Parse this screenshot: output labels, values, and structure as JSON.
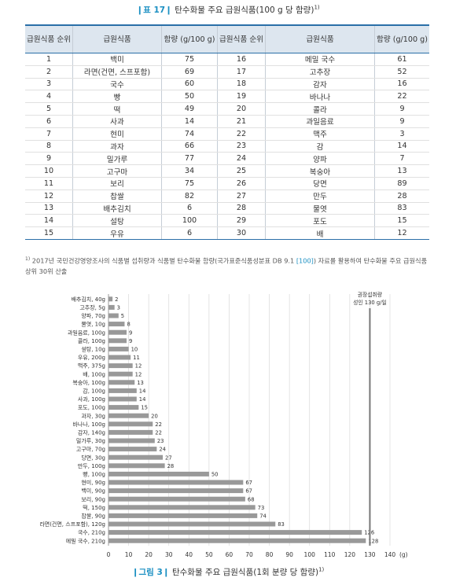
{
  "table": {
    "label": "표 17",
    "title": "탄수화물 주요 급원식품(100 g 당 함량)",
    "footnote_mark": "1)",
    "headers": [
      "급원식품 순위",
      "급원식품",
      "함량 (g/100 g)",
      "급원식품 순위",
      "급원식품",
      "함량 (g/100 g)"
    ],
    "rows": [
      [
        "1",
        "백미",
        "75",
        "16",
        "메밀 국수",
        "61"
      ],
      [
        "2",
        "라면(건면, 스프포함)",
        "69",
        "17",
        "고추장",
        "52"
      ],
      [
        "3",
        "국수",
        "60",
        "18",
        "감자",
        "16"
      ],
      [
        "4",
        "빵",
        "50",
        "19",
        "바나나",
        "22"
      ],
      [
        "5",
        "떡",
        "49",
        "20",
        "콜라",
        "9"
      ],
      [
        "6",
        "사과",
        "14",
        "21",
        "과일음료",
        "9"
      ],
      [
        "7",
        "현미",
        "74",
        "22",
        "맥주",
        "3"
      ],
      [
        "8",
        "과자",
        "66",
        "23",
        "감",
        "14"
      ],
      [
        "9",
        "밀가루",
        "77",
        "24",
        "양파",
        "7"
      ],
      [
        "10",
        "고구마",
        "34",
        "25",
        "복숭아",
        "13"
      ],
      [
        "11",
        "보리",
        "75",
        "26",
        "당면",
        "89"
      ],
      [
        "12",
        "찹쌀",
        "82",
        "27",
        "만두",
        "28"
      ],
      [
        "13",
        "배추김치",
        "6",
        "28",
        "물엿",
        "83"
      ],
      [
        "14",
        "설탕",
        "100",
        "29",
        "포도",
        "15"
      ],
      [
        "15",
        "우유",
        "6",
        "30",
        "배",
        "12"
      ]
    ]
  },
  "note": {
    "mark": "1)",
    "text1": "2017년 국민건강영양조사의 식품별 섭취량과 식품별 탄수화물 함량(국가표준식품성분표 DB 9.1 ",
    "ref": "[100]",
    "text2": ") 자료를 활용하여 탄수화물 주요 급원식품 상위 30위 산출"
  },
  "chart_data": {
    "type": "bar",
    "orientation": "horizontal",
    "categories": [
      "배추김치, 40g",
      "고추장, 5g",
      "양파, 70g",
      "물엿, 10g",
      "과일음료, 100g",
      "콜라, 100g",
      "설탕, 10g",
      "우유, 200g",
      "맥주, 375g",
      "배, 100g",
      "복숭아, 100g",
      "감, 100g",
      "사과, 100g",
      "포도, 100g",
      "과자, 30g",
      "바나나, 100g",
      "감자, 140g",
      "밀가루, 30g",
      "고구마, 70g",
      "당면, 30g",
      "만두, 100g",
      "빵, 100g",
      "현미, 90g",
      "백미, 90g",
      "보리, 90g",
      "떡, 150g",
      "찹쌀, 90g",
      "라면(건면, 스프포함), 120g",
      "국수, 210g",
      "메밀 국수, 210g"
    ],
    "values": [
      2,
      3,
      5,
      8,
      9,
      9,
      10,
      11,
      12,
      12,
      13,
      14,
      14,
      15,
      20,
      22,
      22,
      23,
      24,
      27,
      28,
      50,
      67,
      67,
      68,
      73,
      74,
      83,
      126,
      128
    ],
    "xlim": [
      0,
      140
    ],
    "xticks": [
      0,
      10,
      20,
      30,
      40,
      50,
      60,
      70,
      80,
      90,
      100,
      110,
      120,
      130,
      140
    ],
    "xunit": "(g)",
    "reference_line": {
      "value": 130,
      "label_line1": "권장섭취량",
      "label_line2": "성인 130 g/일"
    },
    "grid": "vertical",
    "bar_color": "#999999"
  },
  "figure": {
    "label": "그림 3",
    "title": "탄수화물 주요 급원식품(1회 분량 당 함량)",
    "footnote_mark": "1)"
  }
}
